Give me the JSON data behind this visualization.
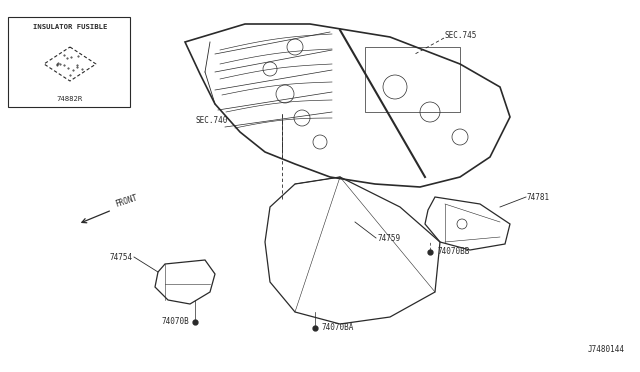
{
  "bg_color": "#ffffff",
  "line_color": "#2a2a2a",
  "diagram_id": "J7480144",
  "inset_label": "INSULATOR FUSIBLE",
  "inset_part": "74882R",
  "sec745_label": "SEC.745",
  "sec740_label": "SEC.740",
  "front_label": "FRONT",
  "label_74781": "74781",
  "label_74759": "74759",
  "label_74754": "74754",
  "label_74070BB": "74070BB",
  "label_74070B": "74070B",
  "label_74070BA": "74070BA"
}
